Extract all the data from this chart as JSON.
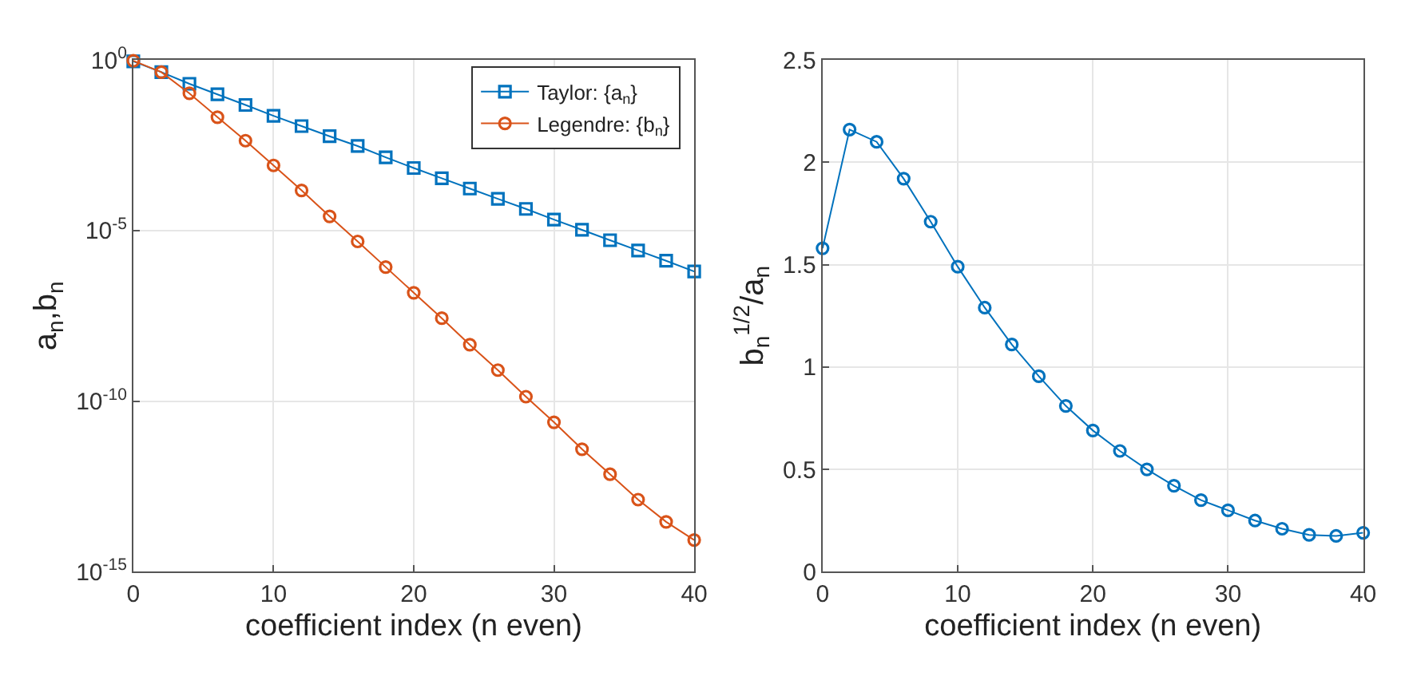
{
  "chart_data": [
    {
      "type": "line",
      "xlabel": "coefficient index (n even)",
      "ylabel": "a$_{n}$,b$_{n}$",
      "log": "y",
      "grid": true,
      "legend": "top right",
      "line_style": "solid",
      "x": [
        0,
        2,
        4,
        6,
        8,
        10,
        12,
        14,
        16,
        18,
        20,
        22,
        24,
        26,
        28,
        30,
        32,
        34,
        36,
        38,
        40
      ],
      "xlim": [
        0,
        40
      ],
      "xticks": [
        0,
        10,
        20,
        30,
        40
      ],
      "ylim": [
        1e-15,
        1
      ],
      "yticks": [
        {
          "value": 1,
          "label": "10$^{0}$"
        },
        {
          "value": 1e-05,
          "label": "10$^{-5}$"
        },
        {
          "value": 1e-10,
          "label": "10$^{-10}$"
        },
        {
          "value": 1e-15,
          "label": "10$^{-15}$"
        }
      ],
      "series": [
        {
          "name": "Taylor: {a$_{n}$}",
          "color": "#0072bd",
          "marker": "square",
          "values": [
            0.91,
            0.44,
            0.2,
            0.098,
            0.048,
            0.023,
            0.0115,
            0.0058,
            0.003,
            0.0014,
            0.00068,
            0.00034,
            0.00017,
            8.5e-05,
            4.3e-05,
            2.1e-05,
            1.05e-05,
            5.2e-06,
            2.6e-06,
            1.3e-06,
            6.3e-07
          ]
        },
        {
          "name": "Legendre: {b$_{n}$}",
          "color": "#d95319",
          "marker": "circle",
          "values": [
            0.95,
            0.44,
            0.105,
            0.021,
            0.0043,
            0.00081,
            0.00015,
            2.6e-05,
            4.8e-06,
            8.5e-07,
            1.5e-07,
            2.7e-08,
            4.5e-09,
            8.1e-10,
            1.35e-10,
            2.4e-11,
            3.9e-12,
            7.2e-13,
            1.3e-13,
            2.9e-14,
            8.5e-15
          ]
        }
      ]
    },
    {
      "type": "line",
      "xlabel": "coefficient index (n even)",
      "ylabel": "b$_{n}$$^{1/2}$/a$_{n}$",
      "grid": true,
      "marker": "circle",
      "line_style": "solid",
      "x": [
        0,
        2,
        4,
        6,
        8,
        10,
        12,
        14,
        16,
        18,
        20,
        22,
        24,
        26,
        28,
        30,
        32,
        34,
        36,
        38,
        40
      ],
      "xlim": [
        0,
        40
      ],
      "xticks": [
        0,
        10,
        20,
        30,
        40
      ],
      "ylim": [
        0,
        2.5
      ],
      "yticks": [
        0,
        0.5,
        1,
        1.5,
        2,
        2.5
      ],
      "series": [
        {
          "color": "#0072bd",
          "values": [
            1.58,
            2.16,
            2.1,
            1.92,
            1.71,
            1.49,
            1.29,
            1.11,
            0.955,
            0.81,
            0.69,
            0.59,
            0.5,
            0.42,
            0.35,
            0.3,
            0.25,
            0.21,
            0.18,
            0.175,
            0.19
          ]
        }
      ]
    }
  ]
}
